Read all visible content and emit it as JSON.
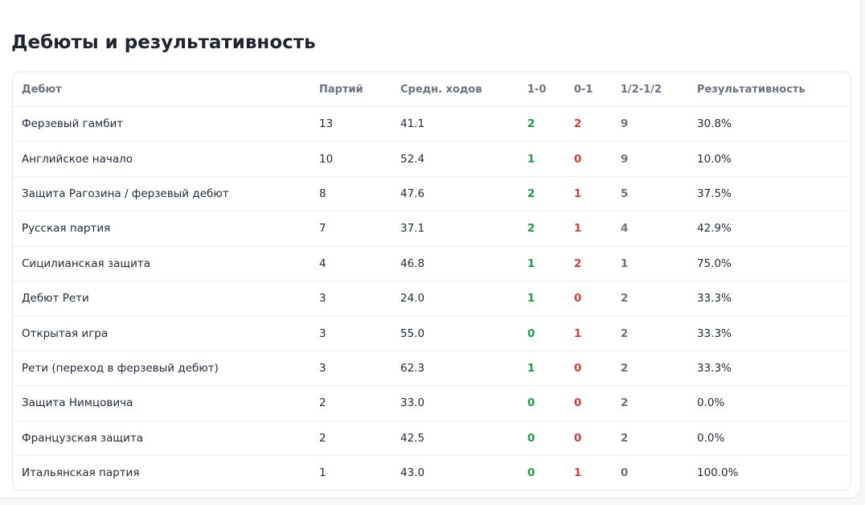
{
  "header": {
    "title": "Дебюты и результативность"
  },
  "table": {
    "columns": [
      "Дебют",
      "Партий",
      "Средн. ходов",
      "1-0",
      "0-1",
      "1/2-1/2",
      "Результативность"
    ],
    "rows": [
      [
        "Ферзевый гамбит",
        "13",
        "41.1",
        "2",
        "2",
        "9",
        "30.8%"
      ],
      [
        "Английское начало",
        "10",
        "52.4",
        "1",
        "0",
        "9",
        "10.0%"
      ],
      [
        "Защита Рагозина / ферзевый дебют",
        "8",
        "47.6",
        "2",
        "1",
        "5",
        "37.5%"
      ],
      [
        "Русская партия",
        "7",
        "37.1",
        "2",
        "1",
        "4",
        "42.9%"
      ],
      [
        "Сицилианская защита",
        "4",
        "46.8",
        "1",
        "2",
        "1",
        "75.0%"
      ],
      [
        "Дебют Рети",
        "3",
        "24.0",
        "1",
        "0",
        "2",
        "33.3%"
      ],
      [
        "Открытая игра",
        "3",
        "55.0",
        "0",
        "1",
        "2",
        "33.3%"
      ],
      [
        "Рети (переход в ферзевый дебют)",
        "3",
        "62.3",
        "1",
        "0",
        "2",
        "33.3%"
      ],
      [
        "Защита Нимцовича",
        "2",
        "33.0",
        "0",
        "0",
        "2",
        "0.0%"
      ],
      [
        "Французская защита",
        "2",
        "42.5",
        "0",
        "0",
        "2",
        "0.0%"
      ],
      [
        "Итальянская партия",
        "1",
        "43.0",
        "0",
        "1",
        "0",
        "100.0%"
      ]
    ]
  }
}
